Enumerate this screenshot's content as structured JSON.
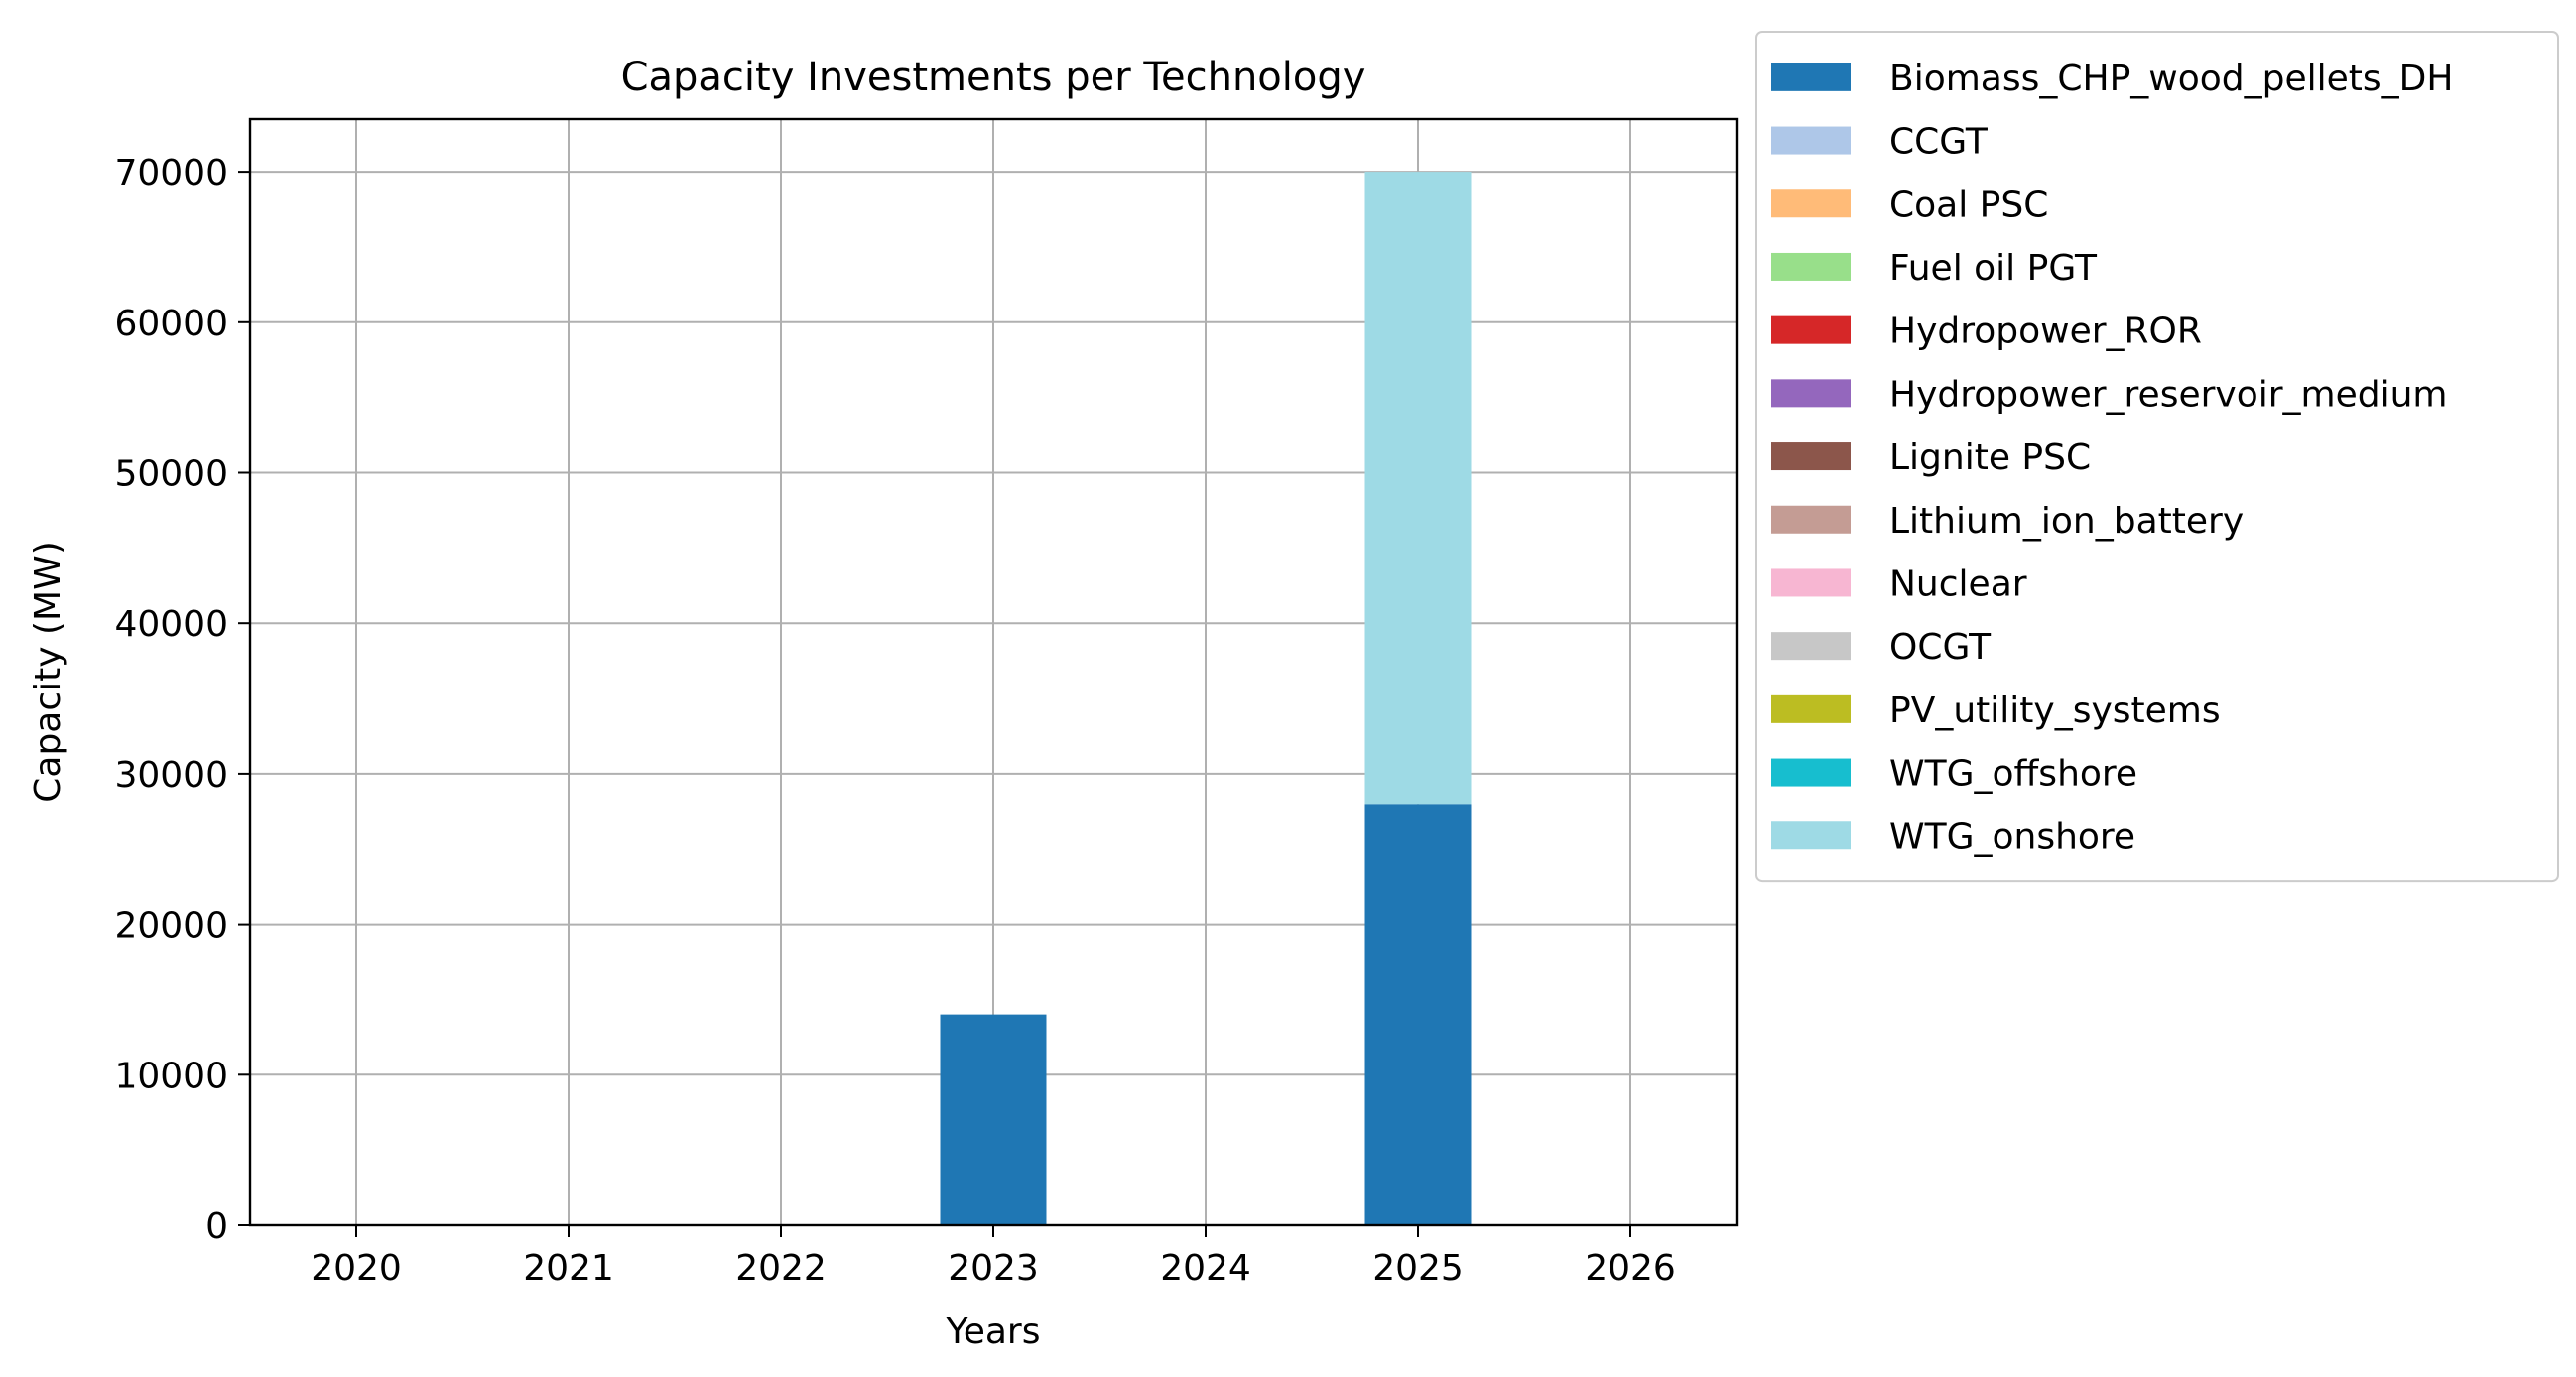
{
  "chart_data": {
    "type": "bar",
    "stacked": true,
    "title": "Capacity Investments per Technology",
    "xlabel": "Years",
    "ylabel": "Capacity (MW)",
    "categories": [
      "2020",
      "2021",
      "2022",
      "2023",
      "2024",
      "2025",
      "2026"
    ],
    "ylim": [
      0,
      73500
    ],
    "yticks": [
      0,
      10000,
      20000,
      30000,
      40000,
      50000,
      60000,
      70000
    ],
    "grid": true,
    "legend_position": "outside-top-right",
    "series": [
      {
        "name": "Biomass_CHP_wood_pellets_DH",
        "color": "#1f77b4",
        "values": [
          0,
          0,
          0,
          14000,
          0,
          28000,
          0
        ]
      },
      {
        "name": "CCGT",
        "color": "#aec7e8",
        "values": [
          0,
          0,
          0,
          0,
          0,
          0,
          0
        ]
      },
      {
        "name": "Coal PSC",
        "color": "#ffbb78",
        "values": [
          0,
          0,
          0,
          0,
          0,
          0,
          0
        ]
      },
      {
        "name": "Fuel oil PGT",
        "color": "#98df8a",
        "values": [
          0,
          0,
          0,
          0,
          0,
          0,
          0
        ]
      },
      {
        "name": "Hydropower_ROR",
        "color": "#d62728",
        "values": [
          0,
          0,
          0,
          0,
          0,
          0,
          0
        ]
      },
      {
        "name": "Hydropower_reservoir_medium",
        "color": "#9467bd",
        "values": [
          0,
          0,
          0,
          0,
          0,
          0,
          0
        ]
      },
      {
        "name": "Lignite PSC",
        "color": "#8c564b",
        "values": [
          0,
          0,
          0,
          0,
          0,
          0,
          0
        ]
      },
      {
        "name": "Lithium_ion_battery",
        "color": "#c49c94",
        "values": [
          0,
          0,
          0,
          0,
          0,
          0,
          0
        ]
      },
      {
        "name": "Nuclear",
        "color": "#f7b6d2",
        "values": [
          0,
          0,
          0,
          0,
          0,
          0,
          0
        ]
      },
      {
        "name": "OCGT",
        "color": "#c7c7c7",
        "values": [
          0,
          0,
          0,
          0,
          0,
          0,
          0
        ]
      },
      {
        "name": "PV_utility_systems",
        "color": "#bcbd22",
        "values": [
          0,
          0,
          0,
          0,
          0,
          0,
          0
        ]
      },
      {
        "name": "WTG_offshore",
        "color": "#17becf",
        "values": [
          0,
          0,
          0,
          0,
          0,
          0,
          0
        ]
      },
      {
        "name": "WTG_onshore",
        "color": "#9edae5",
        "values": [
          0,
          0,
          0,
          0,
          0,
          42000,
          0
        ]
      }
    ]
  }
}
